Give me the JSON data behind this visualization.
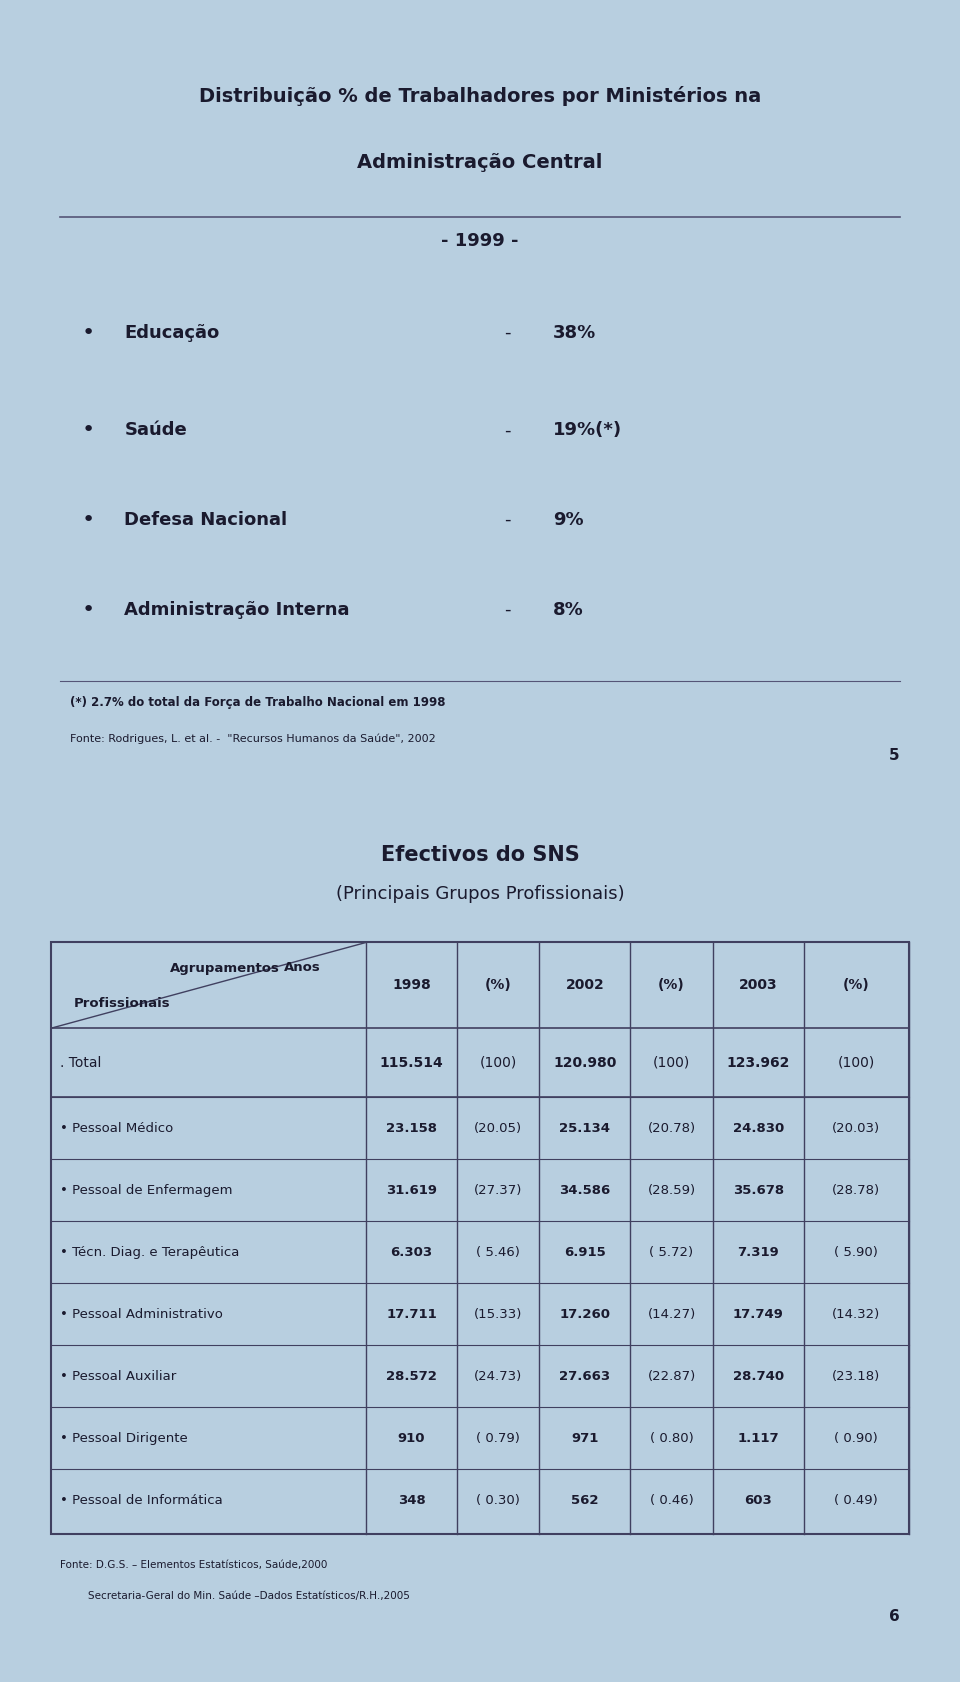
{
  "bg_color": "#c8dff0",
  "page_bg": "#b8cfe0",
  "slide1": {
    "title_line1": "Distribuição % de Trabalhadores por Ministérios na",
    "title_line2": "Administração Central",
    "title_line3": "- 1999 -",
    "bullets": [
      {
        "label": "Educação",
        "value": "38%"
      },
      {
        "label": "Saúde",
        "value": "19%(*)"
      },
      {
        "label": "Defesa Nacional",
        "value": "9%"
      },
      {
        "label": "Administração Interna",
        "value": "8%"
      }
    ],
    "footnote1": "(*) 2.7% do total da Força de Trabalho Nacional em 1998",
    "footnote2": "Fonte: Rodrigues, L. et al. -  \"Recursos Humanos da Saúde\", 2002",
    "page_num": "5"
  },
  "slide2": {
    "title_line1": "Efectivos do SNS",
    "title_line2": "(Principais Grupos Profissionais)",
    "header_cols": [
      "1998",
      "(%)",
      "2002",
      "(%)",
      "2003",
      "(%)"
    ],
    "total_row": [
      ". Total",
      "115.514",
      "(100)",
      "120.980",
      "(100)",
      "123.962",
      "(100)"
    ],
    "data_rows": [
      [
        "• Pessoal Médico",
        "23.158",
        "(20.05)",
        "25.134",
        "(20.78)",
        "24.830",
        "(20.03)"
      ],
      [
        "• Pessoal de Enfermagem",
        "31.619",
        "(27.37)",
        "34.586",
        "(28.59)",
        "35.678",
        "(28.78)"
      ],
      [
        "• Técn. Diag. e Terapêutica",
        "6.303",
        "( 5.46)",
        "6.915",
        "( 5.72)",
        "7.319",
        "( 5.90)"
      ],
      [
        "• Pessoal Administrativo",
        "17.711",
        "(15.33)",
        "17.260",
        "(14.27)",
        "17.749",
        "(14.32)"
      ],
      [
        "• Pessoal Auxiliar",
        "28.572",
        "(24.73)",
        "27.663",
        "(22.87)",
        "28.740",
        "(23.18)"
      ],
      [
        "• Pessoal Dirigente",
        "910",
        "( 0.79)",
        "971",
        "( 0.80)",
        "1.117",
        "( 0.90)"
      ],
      [
        "• Pessoal de Informática",
        "348",
        "( 0.30)",
        "562",
        "( 0.46)",
        "603",
        "( 0.49)"
      ]
    ],
    "footnote1": "Fonte: D.G.S. – Elementos Estatísticos, Saúde,2000",
    "footnote2": "Secretaria-Geral do Min. Saúde –Dados Estatísticos/R.H.,2005",
    "page_num": "6"
  }
}
